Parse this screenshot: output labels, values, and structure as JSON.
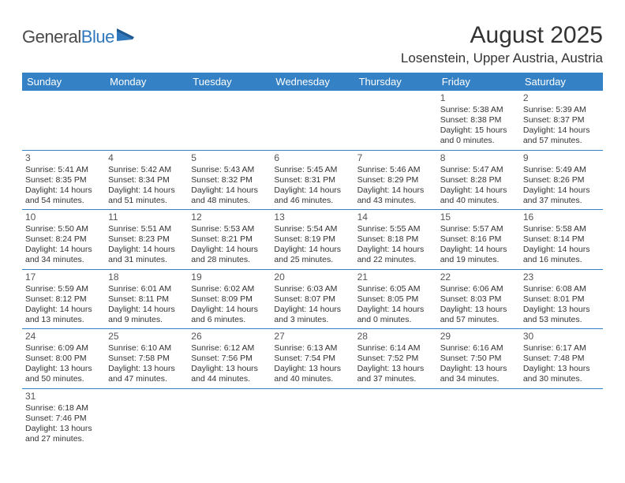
{
  "logo": {
    "part1": "General",
    "part2": "Blue"
  },
  "title": "August 2025",
  "location": "Losenstein, Upper Austria, Austria",
  "colors": {
    "header_bg": "#3481c6",
    "header_text": "#ffffff",
    "row_border": "#3481c6",
    "text": "#333333",
    "logo_gray": "#4a4a4a",
    "logo_blue": "#2f78bd"
  },
  "dayNames": [
    "Sunday",
    "Monday",
    "Tuesday",
    "Wednesday",
    "Thursday",
    "Friday",
    "Saturday"
  ],
  "weeks": [
    [
      null,
      null,
      null,
      null,
      null,
      {
        "d": "1",
        "sunrise": "5:38 AM",
        "sunset": "8:38 PM",
        "daylight": "15 hours and 0 minutes."
      },
      {
        "d": "2",
        "sunrise": "5:39 AM",
        "sunset": "8:37 PM",
        "daylight": "14 hours and 57 minutes."
      }
    ],
    [
      {
        "d": "3",
        "sunrise": "5:41 AM",
        "sunset": "8:35 PM",
        "daylight": "14 hours and 54 minutes."
      },
      {
        "d": "4",
        "sunrise": "5:42 AM",
        "sunset": "8:34 PM",
        "daylight": "14 hours and 51 minutes."
      },
      {
        "d": "5",
        "sunrise": "5:43 AM",
        "sunset": "8:32 PM",
        "daylight": "14 hours and 48 minutes."
      },
      {
        "d": "6",
        "sunrise": "5:45 AM",
        "sunset": "8:31 PM",
        "daylight": "14 hours and 46 minutes."
      },
      {
        "d": "7",
        "sunrise": "5:46 AM",
        "sunset": "8:29 PM",
        "daylight": "14 hours and 43 minutes."
      },
      {
        "d": "8",
        "sunrise": "5:47 AM",
        "sunset": "8:28 PM",
        "daylight": "14 hours and 40 minutes."
      },
      {
        "d": "9",
        "sunrise": "5:49 AM",
        "sunset": "8:26 PM",
        "daylight": "14 hours and 37 minutes."
      }
    ],
    [
      {
        "d": "10",
        "sunrise": "5:50 AM",
        "sunset": "8:24 PM",
        "daylight": "14 hours and 34 minutes."
      },
      {
        "d": "11",
        "sunrise": "5:51 AM",
        "sunset": "8:23 PM",
        "daylight": "14 hours and 31 minutes."
      },
      {
        "d": "12",
        "sunrise": "5:53 AM",
        "sunset": "8:21 PM",
        "daylight": "14 hours and 28 minutes."
      },
      {
        "d": "13",
        "sunrise": "5:54 AM",
        "sunset": "8:19 PM",
        "daylight": "14 hours and 25 minutes."
      },
      {
        "d": "14",
        "sunrise": "5:55 AM",
        "sunset": "8:18 PM",
        "daylight": "14 hours and 22 minutes."
      },
      {
        "d": "15",
        "sunrise": "5:57 AM",
        "sunset": "8:16 PM",
        "daylight": "14 hours and 19 minutes."
      },
      {
        "d": "16",
        "sunrise": "5:58 AM",
        "sunset": "8:14 PM",
        "daylight": "14 hours and 16 minutes."
      }
    ],
    [
      {
        "d": "17",
        "sunrise": "5:59 AM",
        "sunset": "8:12 PM",
        "daylight": "14 hours and 13 minutes."
      },
      {
        "d": "18",
        "sunrise": "6:01 AM",
        "sunset": "8:11 PM",
        "daylight": "14 hours and 9 minutes."
      },
      {
        "d": "19",
        "sunrise": "6:02 AM",
        "sunset": "8:09 PM",
        "daylight": "14 hours and 6 minutes."
      },
      {
        "d": "20",
        "sunrise": "6:03 AM",
        "sunset": "8:07 PM",
        "daylight": "14 hours and 3 minutes."
      },
      {
        "d": "21",
        "sunrise": "6:05 AM",
        "sunset": "8:05 PM",
        "daylight": "14 hours and 0 minutes."
      },
      {
        "d": "22",
        "sunrise": "6:06 AM",
        "sunset": "8:03 PM",
        "daylight": "13 hours and 57 minutes."
      },
      {
        "d": "23",
        "sunrise": "6:08 AM",
        "sunset": "8:01 PM",
        "daylight": "13 hours and 53 minutes."
      }
    ],
    [
      {
        "d": "24",
        "sunrise": "6:09 AM",
        "sunset": "8:00 PM",
        "daylight": "13 hours and 50 minutes."
      },
      {
        "d": "25",
        "sunrise": "6:10 AM",
        "sunset": "7:58 PM",
        "daylight": "13 hours and 47 minutes."
      },
      {
        "d": "26",
        "sunrise": "6:12 AM",
        "sunset": "7:56 PM",
        "daylight": "13 hours and 44 minutes."
      },
      {
        "d": "27",
        "sunrise": "6:13 AM",
        "sunset": "7:54 PM",
        "daylight": "13 hours and 40 minutes."
      },
      {
        "d": "28",
        "sunrise": "6:14 AM",
        "sunset": "7:52 PM",
        "daylight": "13 hours and 37 minutes."
      },
      {
        "d": "29",
        "sunrise": "6:16 AM",
        "sunset": "7:50 PM",
        "daylight": "13 hours and 34 minutes."
      },
      {
        "d": "30",
        "sunrise": "6:17 AM",
        "sunset": "7:48 PM",
        "daylight": "13 hours and 30 minutes."
      }
    ],
    [
      {
        "d": "31",
        "sunrise": "6:18 AM",
        "sunset": "7:46 PM",
        "daylight": "13 hours and 27 minutes."
      },
      null,
      null,
      null,
      null,
      null,
      null
    ]
  ],
  "labels": {
    "sunrise": "Sunrise: ",
    "sunset": "Sunset: ",
    "daylight": "Daylight: "
  }
}
